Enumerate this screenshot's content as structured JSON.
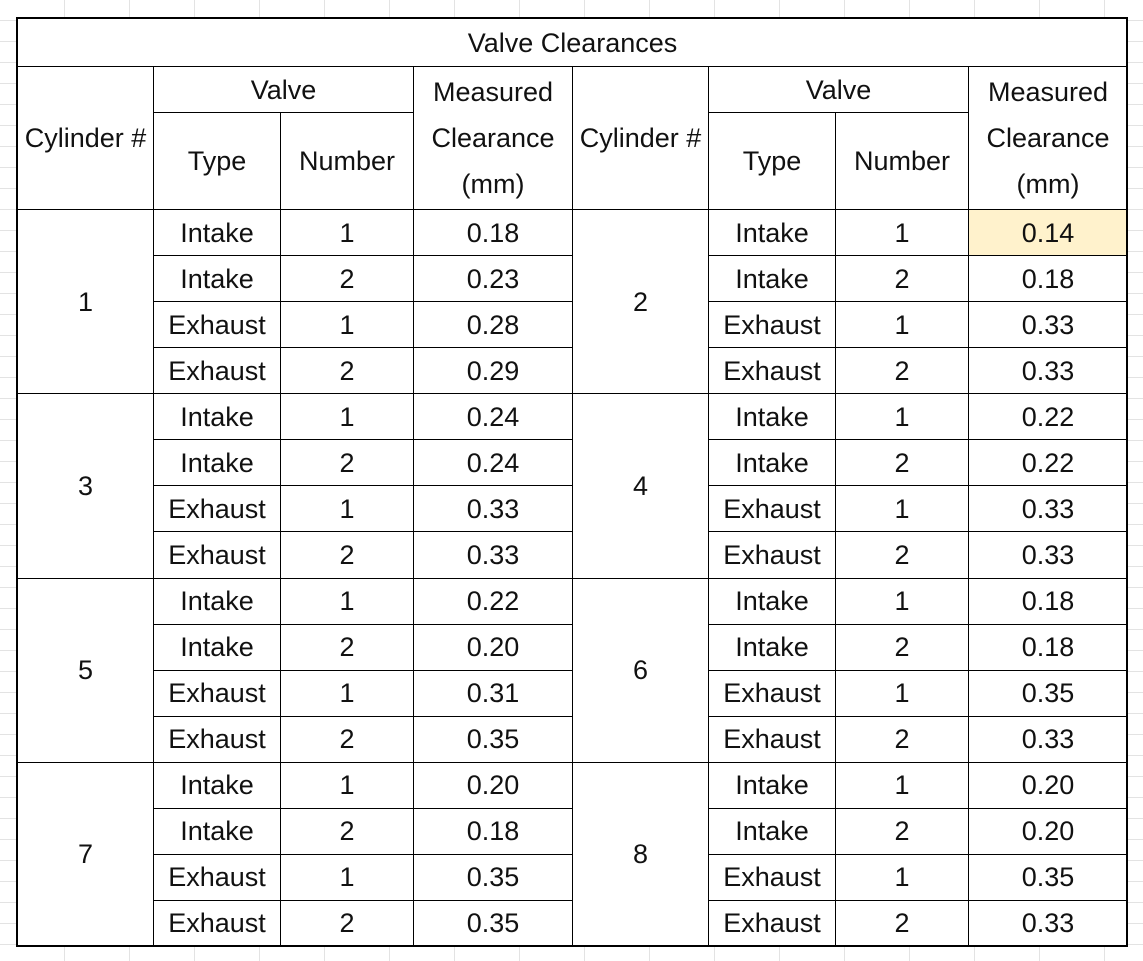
{
  "title": "Valve Clearances",
  "headers": {
    "cylinder": "Cylinder #",
    "valve": "Valve",
    "type": "Type",
    "number": "Number",
    "clearance": "Measured Clearance (mm)"
  },
  "cylinders": [
    {
      "cylinder": "1",
      "valves": [
        [
          "Intake",
          "1",
          "0.18"
        ],
        [
          "Intake",
          "2",
          "0.23"
        ],
        [
          "Exhaust",
          "1",
          "0.28"
        ],
        [
          "Exhaust",
          "2",
          "0.29"
        ]
      ]
    },
    {
      "cylinder": "2",
      "valves": [
        [
          "Intake",
          "1",
          "0.14"
        ],
        [
          "Intake",
          "2",
          "0.18"
        ],
        [
          "Exhaust",
          "1",
          "0.33"
        ],
        [
          "Exhaust",
          "2",
          "0.33"
        ]
      ]
    },
    {
      "cylinder": "3",
      "valves": [
        [
          "Intake",
          "1",
          "0.24"
        ],
        [
          "Intake",
          "2",
          "0.24"
        ],
        [
          "Exhaust",
          "1",
          "0.33"
        ],
        [
          "Exhaust",
          "2",
          "0.33"
        ]
      ]
    },
    {
      "cylinder": "4",
      "valves": [
        [
          "Intake",
          "1",
          "0.22"
        ],
        [
          "Intake",
          "2",
          "0.22"
        ],
        [
          "Exhaust",
          "1",
          "0.33"
        ],
        [
          "Exhaust",
          "2",
          "0.33"
        ]
      ]
    },
    {
      "cylinder": "5",
      "valves": [
        [
          "Intake",
          "1",
          "0.22"
        ],
        [
          "Intake",
          "2",
          "0.20"
        ],
        [
          "Exhaust",
          "1",
          "0.31"
        ],
        [
          "Exhaust",
          "2",
          "0.35"
        ]
      ]
    },
    {
      "cylinder": "6",
      "valves": [
        [
          "Intake",
          "1",
          "0.18"
        ],
        [
          "Intake",
          "2",
          "0.18"
        ],
        [
          "Exhaust",
          "1",
          "0.35"
        ],
        [
          "Exhaust",
          "2",
          "0.33"
        ]
      ]
    },
    {
      "cylinder": "7",
      "valves": [
        [
          "Intake",
          "1",
          "0.20"
        ],
        [
          "Intake",
          "2",
          "0.18"
        ],
        [
          "Exhaust",
          "1",
          "0.35"
        ],
        [
          "Exhaust",
          "2",
          "0.35"
        ]
      ]
    },
    {
      "cylinder": "8",
      "valves": [
        [
          "Intake",
          "1",
          "0.20"
        ],
        [
          "Intake",
          "2",
          "0.20"
        ],
        [
          "Exhaust",
          "1",
          "0.35"
        ],
        [
          "Exhaust",
          "2",
          "0.33"
        ]
      ]
    }
  ]
}
